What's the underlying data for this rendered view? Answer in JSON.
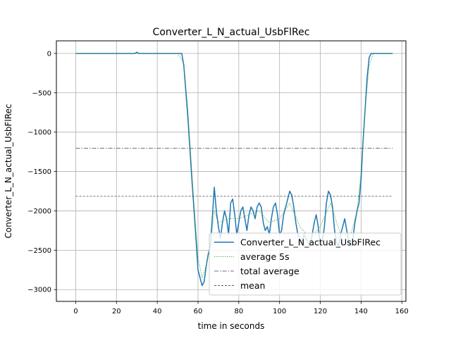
{
  "chart_data": {
    "type": "line",
    "title": "Converter_L_N_actual_UsbFlRec",
    "xlabel": "time in seconds",
    "ylabel": "Converter_L_N_actual_UsbFlRec",
    "xlim": [
      -9.5,
      162
    ],
    "ylim": [
      -3150,
      160
    ],
    "xticks": [
      0,
      20,
      40,
      60,
      80,
      100,
      120,
      140,
      160
    ],
    "yticks": [
      0,
      -500,
      -1000,
      -1500,
      -2000,
      -2500,
      -3000
    ],
    "xtick_labels": [
      "0",
      "20",
      "40",
      "60",
      "80",
      "100",
      "120",
      "140",
      "160"
    ],
    "ytick_labels": [
      "0",
      "−500",
      "−1000",
      "−1500",
      "−2000",
      "−2500",
      "−3000"
    ],
    "grid": true,
    "legend_position": "lower right",
    "series": [
      {
        "name": "Converter_L_N_actual_UsbFlRec",
        "color": "#1f77b4",
        "style": "solid",
        "x": [
          0,
          10,
          20,
          29,
          30,
          31,
          40,
          50,
          52,
          53,
          55,
          57,
          59,
          60,
          61,
          62,
          63,
          64,
          65,
          66,
          67,
          68,
          69,
          70,
          71,
          72,
          73,
          74,
          75,
          76,
          77,
          78,
          79,
          80,
          81,
          82,
          83,
          84,
          85,
          86,
          87,
          88,
          89,
          90,
          91,
          92,
          93,
          94,
          95,
          96,
          97,
          98,
          99,
          100,
          101,
          102,
          103,
          104,
          105,
          106,
          107,
          108,
          109,
          110,
          111,
          112,
          113,
          114,
          115,
          116,
          117,
          118,
          119,
          120,
          121,
          122,
          123,
          124,
          125,
          126,
          127,
          128,
          129,
          130,
          131,
          132,
          133,
          134,
          135,
          136,
          137,
          138,
          139,
          140,
          141,
          142,
          143,
          144,
          145,
          146,
          150,
          155.5
        ],
        "y": [
          0,
          0,
          0,
          0,
          15,
          0,
          0,
          0,
          0,
          -150,
          -800,
          -1600,
          -2350,
          -2750,
          -2850,
          -2950,
          -2900,
          -2700,
          -2550,
          -2450,
          -2100,
          -1700,
          -2000,
          -2200,
          -2350,
          -2150,
          -2000,
          -2100,
          -2300,
          -1900,
          -1850,
          -2050,
          -2300,
          -2150,
          -2000,
          -1950,
          -2100,
          -2250,
          -2050,
          -1950,
          -2000,
          -2100,
          -1950,
          -1900,
          -1950,
          -2150,
          -2250,
          -2200,
          -2300,
          -2100,
          -1950,
          -1900,
          -2050,
          -2300,
          -2250,
          -2050,
          -1950,
          -1850,
          -1750,
          -1800,
          -1950,
          -2150,
          -2300,
          -2350,
          -2400,
          -2300,
          -2350,
          -2400,
          -2450,
          -2300,
          -2150,
          -2050,
          -2200,
          -2450,
          -2400,
          -2200,
          -1900,
          -1750,
          -1800,
          -1950,
          -2250,
          -2400,
          -2450,
          -2300,
          -2200,
          -2100,
          -2250,
          -2400,
          -2450,
          -2350,
          -2150,
          -2000,
          -1900,
          -1600,
          -1100,
          -700,
          -300,
          -50,
          0,
          0,
          0,
          0
        ]
      },
      {
        "name": "average 5s",
        "color": "#2ca02c",
        "style": "dotted",
        "x": [
          0,
          50,
          53,
          55,
          58,
          60,
          62,
          64,
          66,
          68,
          70,
          75,
          80,
          85,
          90,
          95,
          100,
          105,
          110,
          115,
          120,
          125,
          130,
          135,
          138,
          140,
          142,
          144,
          146,
          155.5
        ],
        "y": [
          0,
          0,
          -120,
          -700,
          -1900,
          -2600,
          -2850,
          -2700,
          -2450,
          -2000,
          -2150,
          -2100,
          -2100,
          -2050,
          -2000,
          -2150,
          -2100,
          -1900,
          -2200,
          -2350,
          -2200,
          -1900,
          -2300,
          -2300,
          -2000,
          -1500,
          -700,
          -150,
          0,
          0
        ]
      },
      {
        "name": "total average",
        "color": "#444444",
        "style": "dashdot",
        "x": [
          0,
          155.5
        ],
        "y": [
          -1205,
          -1205
        ]
      },
      {
        "name": "mean",
        "color": "#222222",
        "style": "dashed",
        "x": [
          0,
          155.5
        ],
        "y": [
          -1815,
          -1815
        ]
      }
    ]
  }
}
